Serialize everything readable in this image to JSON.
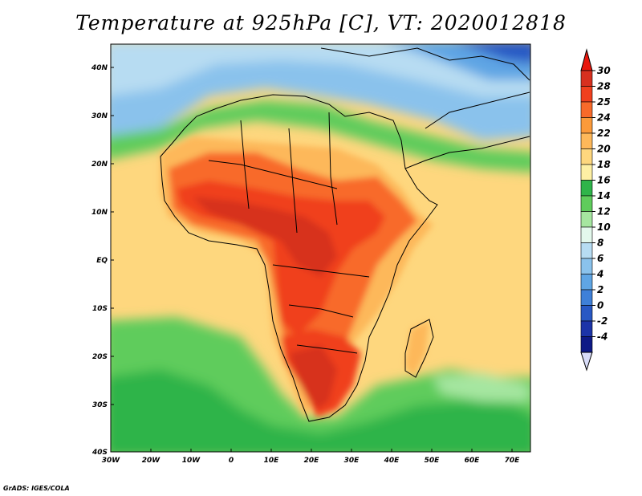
{
  "title": "Temperature at 925hPa [C], VT: 2020012818",
  "credit": "GrADS: IGES/COLA",
  "map": {
    "lon_ticks": [
      "30W",
      "20W",
      "10W",
      "0",
      "10E",
      "20E",
      "30E",
      "40E",
      "50E",
      "60E",
      "70E"
    ],
    "lat_ticks": [
      "40N",
      "30N",
      "20N",
      "10N",
      "EQ",
      "10S",
      "20S",
      "30S",
      "40S"
    ]
  },
  "colorbar": {
    "labels": [
      "30",
      "28",
      "25",
      "24",
      "22",
      "20",
      "18",
      "16",
      "14",
      "12",
      "10",
      "8",
      "6",
      "4",
      "2",
      "0",
      "-2",
      "-4"
    ],
    "colors": [
      "#d7301f",
      "#f0401e",
      "#f86a2a",
      "#fb9a3a",
      "#fdb85a",
      "#fed77e",
      "#fef0a4",
      "#2fb44a",
      "#5fcc5c",
      "#a6e6a0",
      "#e3f8ec",
      "#b7dcf2",
      "#8ac2ec",
      "#5fa5e4",
      "#3f80d8",
      "#2858c4",
      "#1c34a8",
      "#0e1a86"
    ],
    "top_color": "#e8160c",
    "bottom_color": "#d8dcf8"
  }
}
